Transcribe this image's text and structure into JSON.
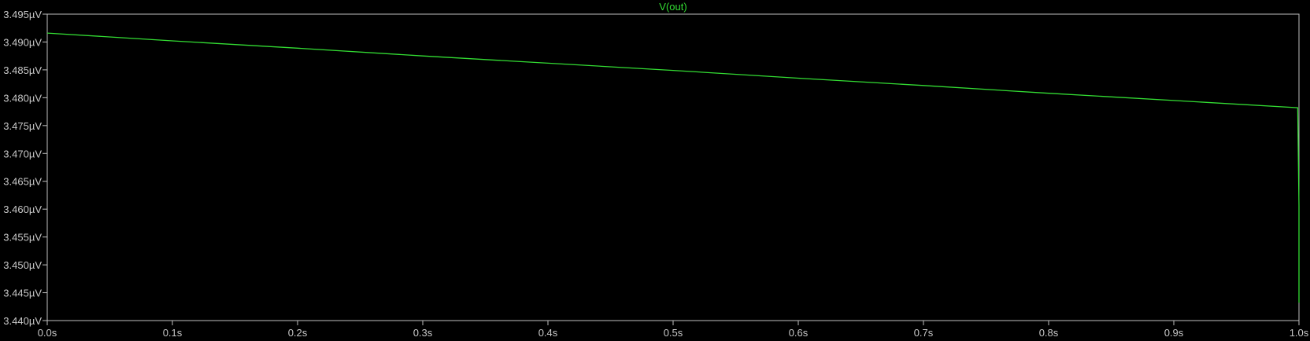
{
  "chart_data": {
    "type": "line",
    "title": "V(out)",
    "xlabel": "",
    "ylabel": "",
    "xlim": [
      0.0,
      1.0
    ],
    "ylim": [
      3.44,
      3.495
    ],
    "grid": false,
    "x_ticks": [
      "0.0s",
      "0.1s",
      "0.2s",
      "0.3s",
      "0.4s",
      "0.5s",
      "0.6s",
      "0.7s",
      "0.8s",
      "0.9s",
      "1.0s"
    ],
    "x_tick_values": [
      0,
      0.1,
      0.2,
      0.3,
      0.4,
      0.5,
      0.6,
      0.7,
      0.8,
      0.9,
      1.0
    ],
    "y_ticks": [
      "3.495µV",
      "3.490µV",
      "3.485µV",
      "3.480µV",
      "3.475µV",
      "3.470µV",
      "3.465µV",
      "3.460µV",
      "3.455µV",
      "3.450µV",
      "3.445µV",
      "3.440µV"
    ],
    "y_tick_values": [
      3.495,
      3.49,
      3.485,
      3.48,
      3.475,
      3.47,
      3.465,
      3.46,
      3.455,
      3.45,
      3.445,
      3.44
    ],
    "series": [
      {
        "name": "V(out)",
        "color": "#33dd33",
        "x": [
          0.0,
          0.1,
          0.2,
          0.3,
          0.4,
          0.5,
          0.6,
          0.7,
          0.8,
          0.9,
          0.999,
          1.0,
          1.0
        ],
        "y": [
          3.4916,
          3.4902,
          3.4889,
          3.4875,
          3.4862,
          3.4849,
          3.4835,
          3.4822,
          3.4808,
          3.4795,
          3.4782,
          3.4606,
          3.4432
        ]
      }
    ],
    "colors": {
      "background": "#000000",
      "axis": "#c0c0c0",
      "tick_text": "#c8c8c8",
      "title": "#33dd33"
    }
  }
}
